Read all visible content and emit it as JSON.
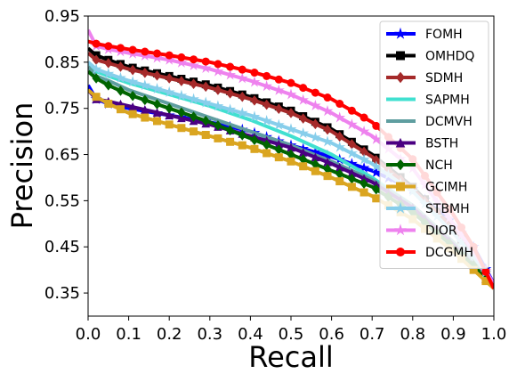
{
  "chart_data": {
    "type": "line",
    "title": "",
    "xlabel": "Recall",
    "ylabel": "Precision",
    "xlim": [
      0.0,
      1.0
    ],
    "ylim": [
      0.3,
      0.95
    ],
    "xticks": [
      "0.0",
      "0.1",
      "0.2",
      "0.3",
      "0.4",
      "0.5",
      "0.6",
      "0.7",
      "0.8",
      "0.9",
      "1.0"
    ],
    "yticks": [
      "0.35",
      "0.45",
      "0.55",
      "0.65",
      "0.75",
      "0.85",
      "0.95"
    ],
    "ytick_values": [
      0.35,
      0.45,
      0.55,
      0.65,
      0.75,
      0.85,
      0.95
    ],
    "grid": false,
    "legend_position": "top-right",
    "series": [
      {
        "name": "FOMH",
        "color": "#0000ff",
        "marker": "star",
        "x": [
          0,
          0.02,
          0.05,
          0.1,
          0.2,
          0.3,
          0.4,
          0.5,
          0.6,
          0.7,
          0.8,
          0.9,
          0.95,
          1.0
        ],
        "y": [
          0.8,
          0.77,
          0.76,
          0.75,
          0.735,
          0.72,
          0.7,
          0.67,
          0.645,
          0.615,
          0.575,
          0.5,
          0.45,
          0.37
        ]
      },
      {
        "name": "OMHDQ",
        "color": "#000000",
        "marker": "square",
        "x": [
          0,
          0.02,
          0.05,
          0.1,
          0.2,
          0.3,
          0.4,
          0.5,
          0.6,
          0.7,
          0.8,
          0.9,
          0.95,
          1.0
        ],
        "y": [
          0.88,
          0.865,
          0.855,
          0.84,
          0.82,
          0.8,
          0.775,
          0.745,
          0.705,
          0.65,
          0.58,
          0.49,
          0.43,
          0.37
        ]
      },
      {
        "name": "SDMH",
        "color": "#a52a2a",
        "marker": "diamond",
        "x": [
          0,
          0.02,
          0.05,
          0.1,
          0.2,
          0.3,
          0.4,
          0.5,
          0.6,
          0.7,
          0.8,
          0.9,
          0.95,
          1.0
        ],
        "y": [
          0.87,
          0.855,
          0.848,
          0.835,
          0.815,
          0.795,
          0.77,
          0.74,
          0.7,
          0.645,
          0.575,
          0.49,
          0.43,
          0.37
        ]
      },
      {
        "name": "SAPMH",
        "color": "#40e0d0",
        "marker": "none",
        "x": [
          0,
          0.02,
          0.05,
          0.1,
          0.2,
          0.3,
          0.4,
          0.5,
          0.6,
          0.7,
          0.8,
          0.9,
          0.95,
          1.0
        ],
        "y": [
          0.85,
          0.83,
          0.82,
          0.805,
          0.78,
          0.755,
          0.725,
          0.69,
          0.65,
          0.6,
          0.54,
          0.46,
          0.42,
          0.36
        ]
      },
      {
        "name": "DCMVH",
        "color": "#5f9ea0",
        "marker": "none",
        "x": [
          0,
          0.02,
          0.05,
          0.1,
          0.2,
          0.3,
          0.4,
          0.5,
          0.6,
          0.7,
          0.8,
          0.9,
          0.95,
          1.0
        ],
        "y": [
          0.84,
          0.82,
          0.81,
          0.79,
          0.76,
          0.73,
          0.7,
          0.67,
          0.635,
          0.595,
          0.54,
          0.46,
          0.42,
          0.36
        ]
      },
      {
        "name": "BSTH",
        "color": "#4b0082",
        "marker": "triangle",
        "x": [
          0,
          0.02,
          0.05,
          0.1,
          0.2,
          0.3,
          0.4,
          0.5,
          0.6,
          0.7,
          0.8,
          0.9,
          0.95,
          1.0
        ],
        "y": [
          0.79,
          0.77,
          0.765,
          0.755,
          0.735,
          0.715,
          0.69,
          0.665,
          0.63,
          0.59,
          0.535,
          0.455,
          0.41,
          0.36
        ]
      },
      {
        "name": "NCH",
        "color": "#006400",
        "marker": "diamond",
        "x": [
          0,
          0.02,
          0.05,
          0.1,
          0.2,
          0.3,
          0.4,
          0.5,
          0.6,
          0.7,
          0.8,
          0.9,
          0.95,
          1.0
        ],
        "y": [
          0.83,
          0.815,
          0.8,
          0.78,
          0.75,
          0.72,
          0.685,
          0.65,
          0.615,
          0.58,
          0.525,
          0.45,
          0.41,
          0.36
        ]
      },
      {
        "name": "GCIMH",
        "color": "#daa520",
        "marker": "square",
        "x": [
          0,
          0.02,
          0.05,
          0.1,
          0.2,
          0.3,
          0.4,
          0.5,
          0.6,
          0.7,
          0.8,
          0.9,
          0.95,
          1.0
        ],
        "y": [
          0.79,
          0.775,
          0.76,
          0.74,
          0.715,
          0.69,
          0.665,
          0.635,
          0.6,
          0.56,
          0.51,
          0.44,
          0.4,
          0.36
        ]
      },
      {
        "name": "STBMH",
        "color": "#87ceeb",
        "marker": "star",
        "x": [
          0,
          0.02,
          0.05,
          0.1,
          0.2,
          0.3,
          0.4,
          0.5,
          0.6,
          0.7,
          0.8,
          0.9,
          0.95,
          1.0
        ],
        "y": [
          0.85,
          0.835,
          0.825,
          0.81,
          0.785,
          0.76,
          0.735,
          0.705,
          0.675,
          0.63,
          0.57,
          0.48,
          0.43,
          0.37
        ]
      },
      {
        "name": "DIOR",
        "color": "#ee82ee",
        "marker": "star",
        "x": [
          0,
          0.02,
          0.05,
          0.1,
          0.2,
          0.3,
          0.4,
          0.5,
          0.6,
          0.7,
          0.8,
          0.9,
          0.95,
          1.0
        ],
        "y": [
          0.92,
          0.885,
          0.878,
          0.87,
          0.855,
          0.835,
          0.81,
          0.78,
          0.74,
          0.69,
          0.62,
          0.5,
          0.44,
          0.37
        ]
      },
      {
        "name": "DCGMH",
        "color": "#ff0000",
        "marker": "circle",
        "x": [
          0,
          0.02,
          0.05,
          0.1,
          0.2,
          0.3,
          0.4,
          0.5,
          0.6,
          0.7,
          0.8,
          0.9,
          0.95,
          1.0
        ],
        "y": [
          0.895,
          0.89,
          0.885,
          0.878,
          0.865,
          0.85,
          0.83,
          0.805,
          0.77,
          0.72,
          0.64,
          0.52,
          0.45,
          0.36
        ]
      }
    ]
  }
}
